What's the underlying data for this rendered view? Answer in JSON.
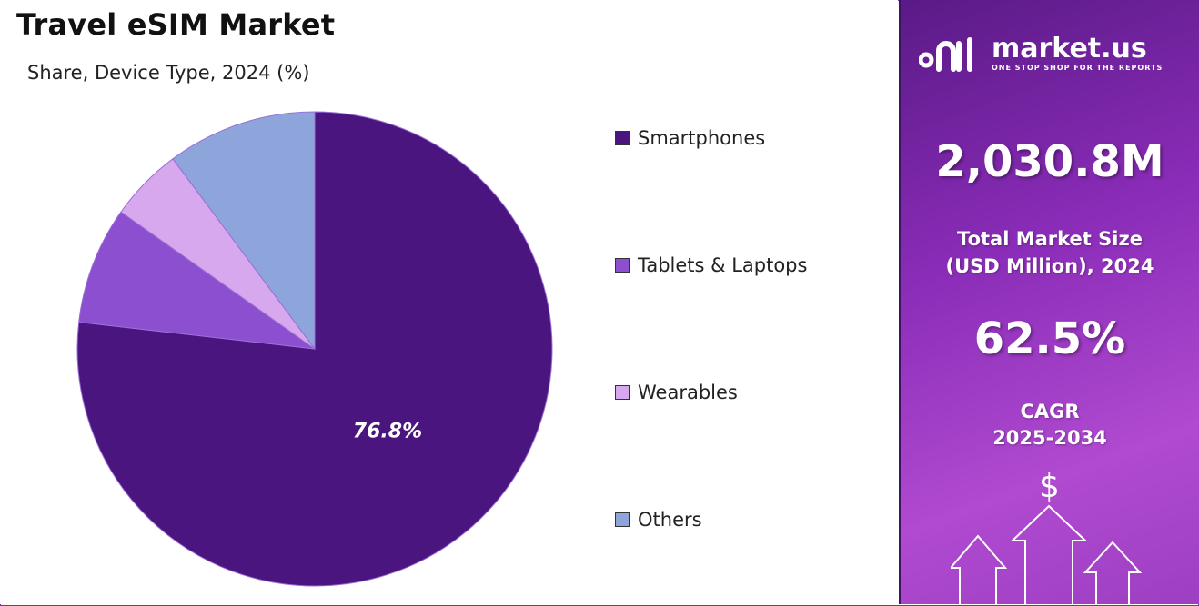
{
  "header": {
    "title": "Travel eSIM Market",
    "subtitle": "Share, Device Type, 2024 (%)"
  },
  "chart_data": {
    "type": "pie",
    "title": "Travel eSIM Market",
    "subtitle": "Share, Device Type, 2024 (%)",
    "categories": [
      "Smartphones",
      "Tablets & Laptops",
      "Wearables",
      "Others"
    ],
    "values": [
      76.8,
      8.0,
      5.0,
      10.2
    ],
    "colors": [
      "#4b1580",
      "#8b4fd0",
      "#d7a8ee",
      "#8ea5dc"
    ],
    "data_labels": [
      "76.8%",
      "",
      "",
      ""
    ],
    "legend_position": "right"
  },
  "sidebar": {
    "brand_name": "market.us",
    "brand_tagline": "ONE STOP SHOP FOR THE REPORTS",
    "market_size_value": "2,030.8M",
    "market_size_label_line1": "Total Market Size",
    "market_size_label_line2": "(USD Million), 2024",
    "cagr_value": "62.5%",
    "cagr_label_line1": "CAGR",
    "cagr_label_line2": "2025-2034",
    "currency_symbol": "$"
  }
}
